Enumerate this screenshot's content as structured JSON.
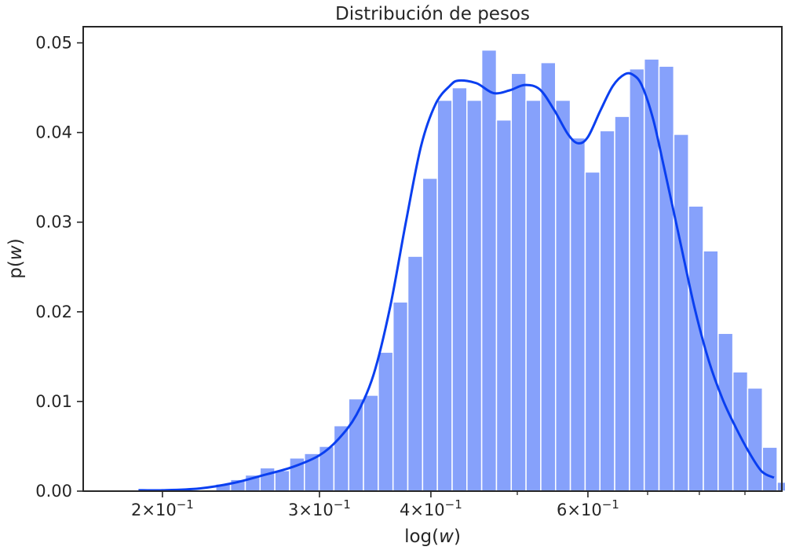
{
  "chart_data": {
    "type": "bar",
    "subtype": "histogram-with-kde",
    "title": "Distribución de pesos",
    "xlabel_prefix": "log(",
    "xlabel_var": "w",
    "xlabel_suffix": ")",
    "ylabel_func": "p(",
    "ylabel_var": "w",
    "ylabel_suffix": ")",
    "x_scale": "log",
    "xlim": [
      0.163,
      0.99
    ],
    "ylim": [
      0,
      0.0518
    ],
    "grid": false,
    "legend": "none",
    "colors": {
      "bars": "#86a1fb",
      "kde_line": "#0a3ff0",
      "axes": "#262626"
    },
    "x_ticks": [
      {
        "value": 0.2,
        "mantissa": "2",
        "times": "×",
        "base": "10",
        "exponent": "−1"
      },
      {
        "value": 0.3,
        "mantissa": "3",
        "times": "×",
        "base": "10",
        "exponent": "−1"
      },
      {
        "value": 0.4,
        "mantissa": "4",
        "times": "×",
        "base": "10",
        "exponent": "−1"
      },
      {
        "value": 0.6,
        "mantissa": "6",
        "times": "×",
        "base": "10",
        "exponent": "−1"
      }
    ],
    "x_minor_ticks": [
      0.5,
      0.7,
      0.8,
      0.9
    ],
    "y_ticks": [
      {
        "value": 0.0,
        "label": "0.00"
      },
      {
        "value": 0.01,
        "label": "0.01"
      },
      {
        "value": 0.02,
        "label": "0.02"
      },
      {
        "value": 0.03,
        "label": "0.03"
      },
      {
        "value": 0.04,
        "label": "0.04"
      },
      {
        "value": 0.05,
        "label": "0.05"
      }
    ],
    "bins": {
      "first_edge": 0.2295,
      "log10_width": 0.01657,
      "values": [
        0.0008,
        0.0013,
        0.0018,
        0.0026,
        0.0023,
        0.0037,
        0.0042,
        0.005,
        0.0073,
        0.0103,
        0.0107,
        0.0155,
        0.0211,
        0.0262,
        0.0349,
        0.0436,
        0.045,
        0.0436,
        0.0492,
        0.0414,
        0.0466,
        0.0436,
        0.0478,
        0.0436,
        0.0394,
        0.0356,
        0.0402,
        0.0418,
        0.0471,
        0.0482,
        0.0474,
        0.0398,
        0.0318,
        0.0268,
        0.0176,
        0.0133,
        0.0115,
        0.0049,
        0.001
      ]
    },
    "kde": {
      "x": [
        0.188,
        0.2,
        0.22,
        0.24,
        0.26,
        0.28,
        0.3,
        0.315,
        0.33,
        0.345,
        0.36,
        0.375,
        0.39,
        0.405,
        0.42,
        0.43,
        0.45,
        0.47,
        0.49,
        0.51,
        0.53,
        0.55,
        0.57,
        0.585,
        0.6,
        0.62,
        0.64,
        0.66,
        0.675,
        0.69,
        0.71,
        0.73,
        0.76,
        0.79,
        0.82,
        0.85,
        0.88,
        0.91,
        0.94,
        0.97
      ],
      "y": [
        0.0001,
        0.0001,
        0.0003,
        0.0009,
        0.0018,
        0.0027,
        0.004,
        0.0058,
        0.0085,
        0.013,
        0.0205,
        0.03,
        0.0385,
        0.0432,
        0.0452,
        0.0458,
        0.0455,
        0.0444,
        0.0447,
        0.0453,
        0.0448,
        0.0425,
        0.0398,
        0.0388,
        0.0395,
        0.0425,
        0.0452,
        0.0465,
        0.0464,
        0.0452,
        0.0415,
        0.0362,
        0.0282,
        0.0205,
        0.0145,
        0.0102,
        0.007,
        0.0043,
        0.0022,
        0.0015
      ]
    }
  }
}
